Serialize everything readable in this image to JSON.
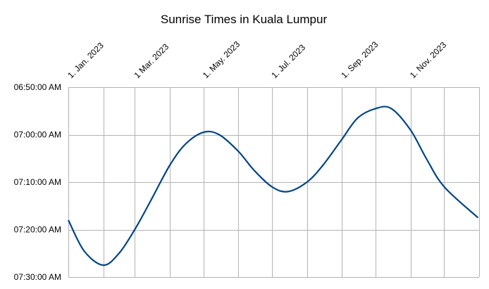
{
  "chart_data": {
    "type": "line",
    "title": "Sunrise Times in Kuala Lumpur",
    "xlabel": "",
    "ylabel": "",
    "x_ticks": [
      "1. Jan. 2023",
      "1 Mar. 2023",
      "1. May. 2023",
      "1. Jul. 2023",
      "1. Sep. 2023",
      "1. Nov. 2023"
    ],
    "y_ticks": [
      "06:50:00 AM",
      "07:00:00 AM",
      "07:10:00 AM",
      "07:20:00 AM",
      "07:30:00 AM"
    ],
    "xlim": [
      "2023-01-01",
      "2024-01-01"
    ],
    "ylim": [
      "06:50:00 AM",
      "07:30:00 AM"
    ],
    "y_axis_inverted": true,
    "grid": true,
    "legend": "none",
    "line_color": "#004586",
    "series": [
      {
        "points": [
          [
            "2023-01-01",
            "07:18:00"
          ],
          [
            "2023-01-15",
            "07:24:30"
          ],
          [
            "2023-02-01",
            "07:27:30"
          ],
          [
            "2023-02-15",
            "07:25:00"
          ],
          [
            "2023-03-01",
            "07:20:00"
          ],
          [
            "2023-03-15",
            "07:14:00"
          ],
          [
            "2023-04-01",
            "07:06:30"
          ],
          [
            "2023-04-15",
            "07:02:00"
          ],
          [
            "2023-05-01",
            "06:59:30"
          ],
          [
            "2023-05-15",
            "07:00:00"
          ],
          [
            "2023-06-01",
            "07:03:30"
          ],
          [
            "2023-06-15",
            "07:07:30"
          ],
          [
            "2023-07-01",
            "07:11:00"
          ],
          [
            "2023-07-15",
            "07:12:00"
          ],
          [
            "2023-08-01",
            "07:10:00"
          ],
          [
            "2023-08-15",
            "07:06:30"
          ],
          [
            "2023-09-01",
            "07:01:00"
          ],
          [
            "2023-09-15",
            "06:56:30"
          ],
          [
            "2023-10-01",
            "06:54:30"
          ],
          [
            "2023-10-15",
            "06:54:30"
          ],
          [
            "2023-11-01",
            "06:59:00"
          ],
          [
            "2023-11-15",
            "07:05:00"
          ],
          [
            "2023-12-01",
            "07:11:00"
          ],
          [
            "2023-12-31",
            "07:17:30"
          ]
        ]
      }
    ]
  }
}
